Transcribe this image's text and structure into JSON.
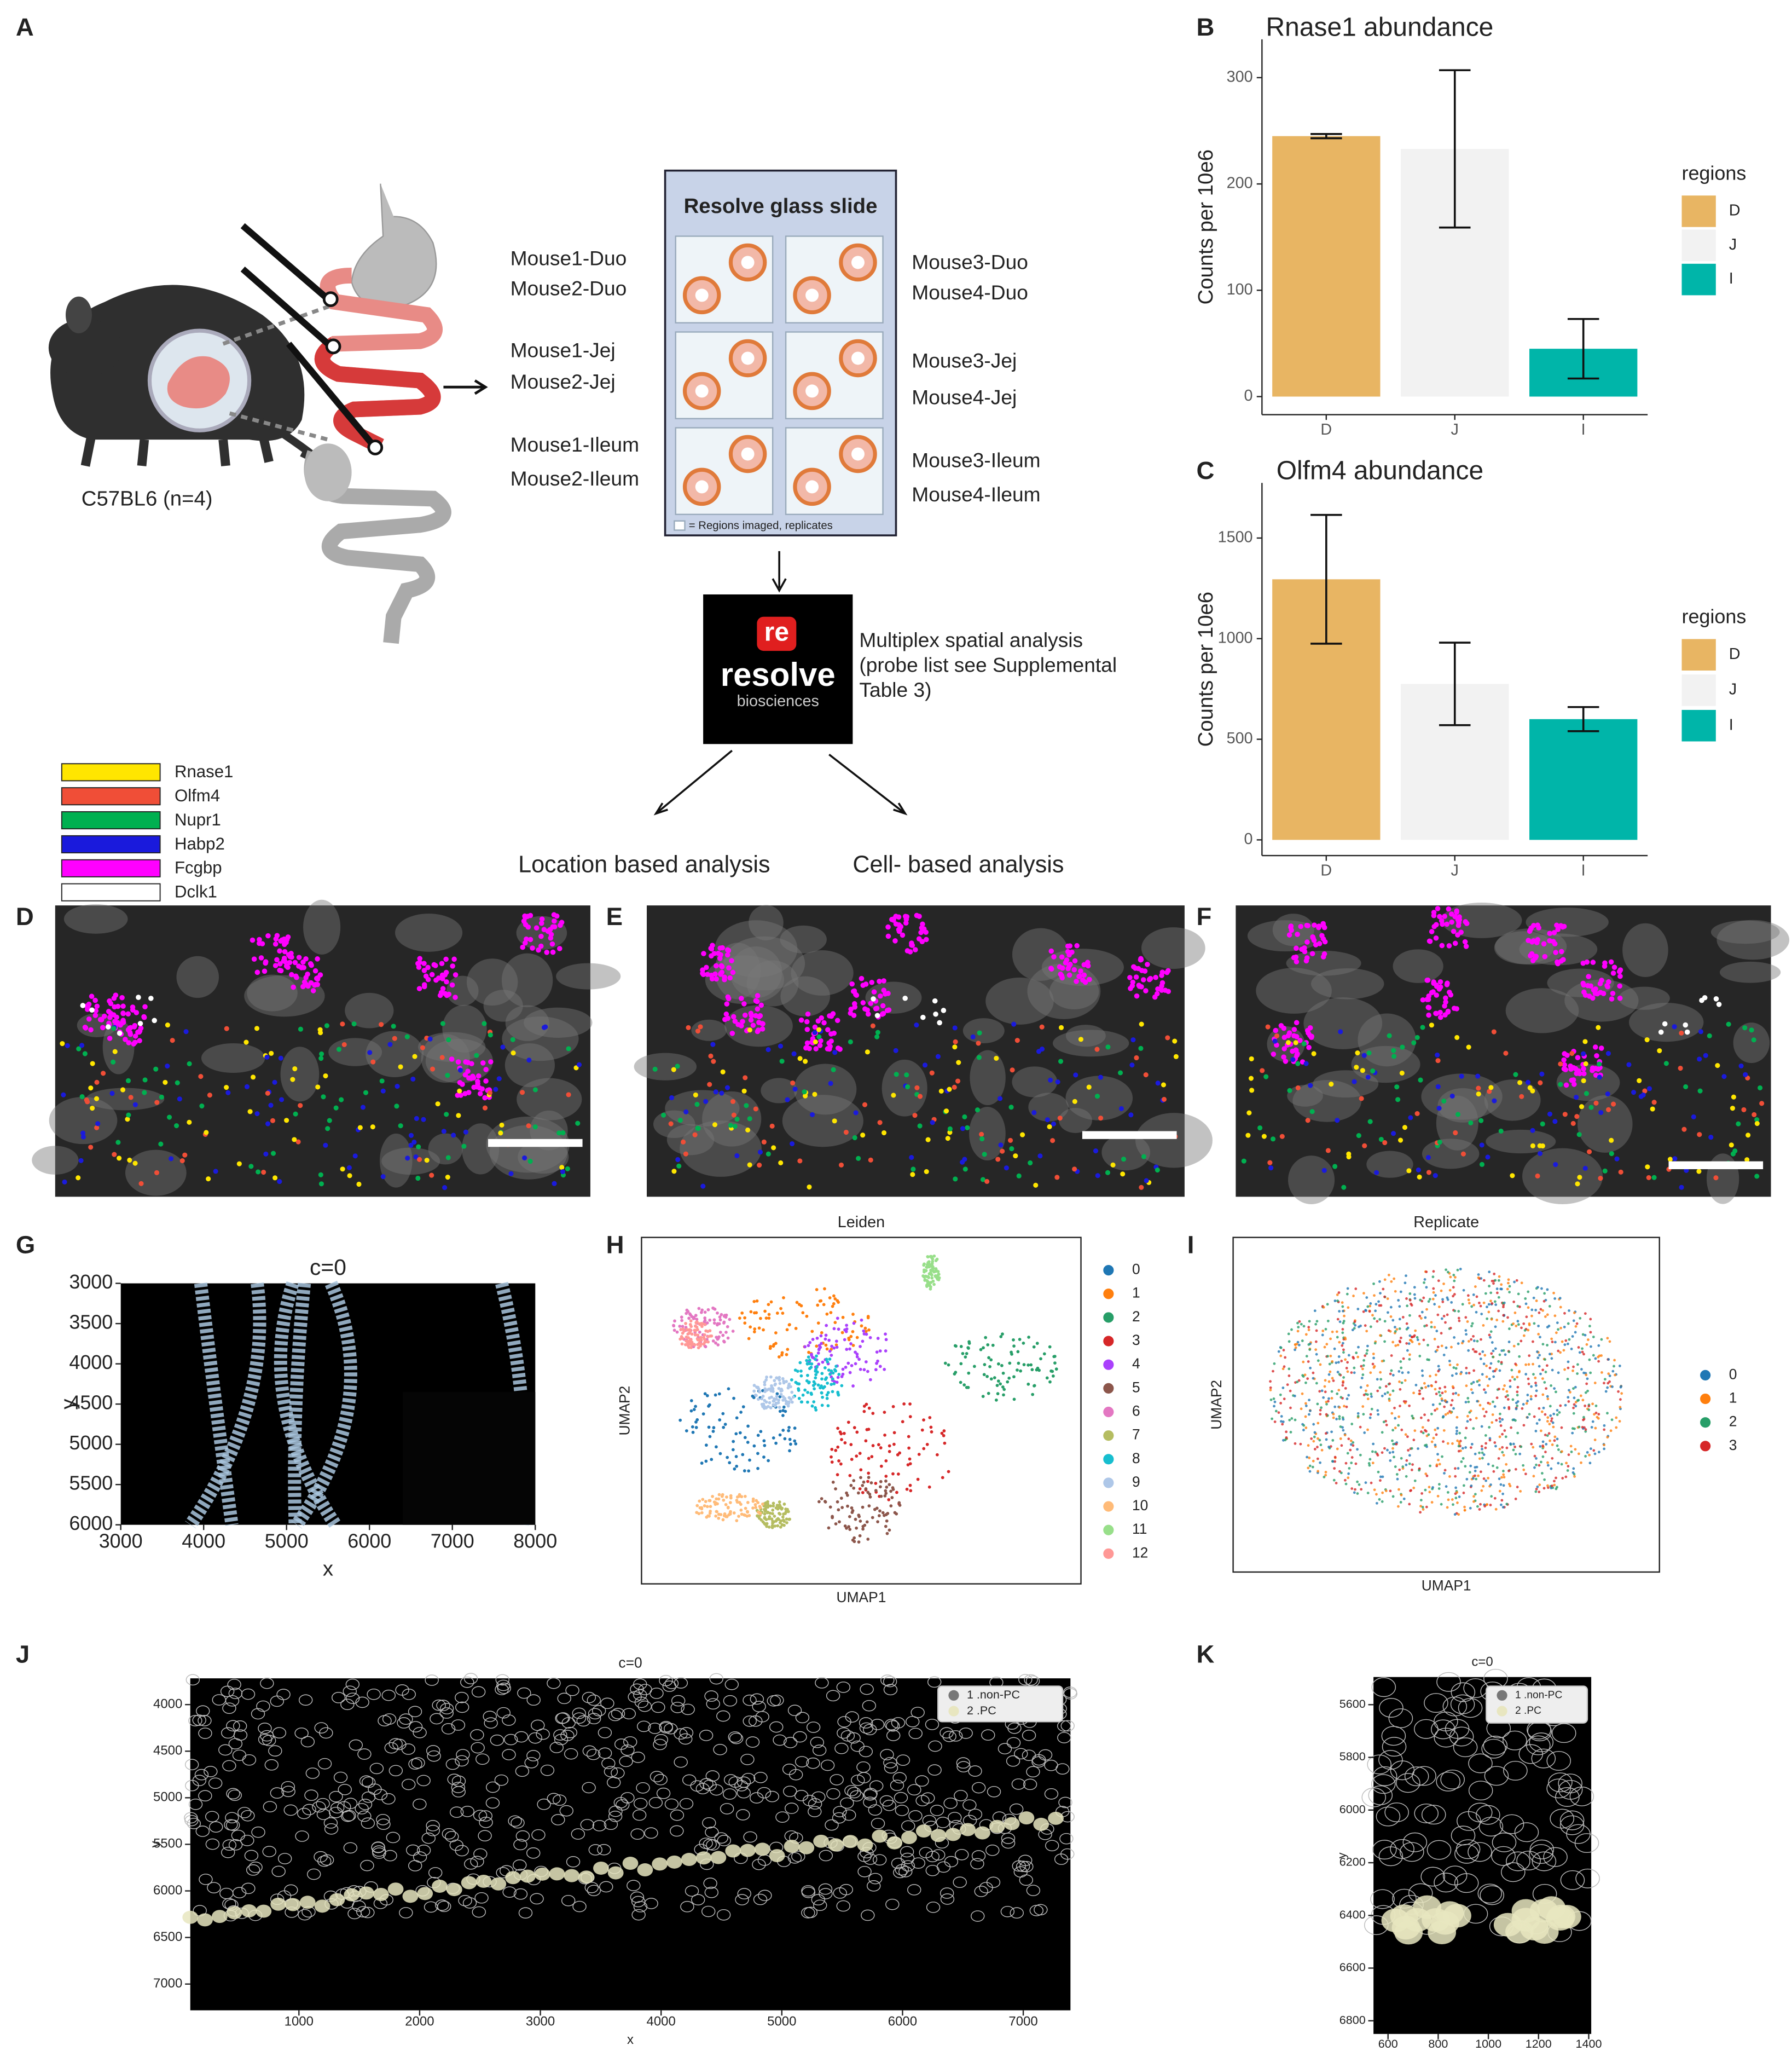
{
  "figure": {
    "panels": [
      "A",
      "B",
      "C",
      "D",
      "E",
      "F",
      "G",
      "H",
      "I",
      "J",
      "K"
    ]
  },
  "diagram": {
    "mouse_label": "C57BL6 (n=4)",
    "slide_title": "Resolve glass slide",
    "slide_note": "= Regions imaged, replicates",
    "left_samples": [
      "Mouse1-Duo",
      "Mouse2-Duo",
      "Mouse1-Jej",
      "Mouse2-Jej",
      "Mouse1-Ileum",
      "Mouse2-Ileum"
    ],
    "right_samples": [
      "Mouse3-Duo",
      "Mouse4-Duo",
      "Mouse3-Jej",
      "Mouse4-Jej",
      "Mouse3-Ileum",
      "Mouse4-Ileum"
    ],
    "logo_text": [
      "re",
      "resolve",
      "biosciences"
    ],
    "analysis_text": [
      "Multiplex spatial analysis",
      "(probe list see Supplemental",
      "Table 3)"
    ],
    "branches": [
      "Location based analysis",
      "Cell- based analysis"
    ]
  },
  "gene_legend": [
    {
      "name": "Rnase1",
      "color": "#ffe600"
    },
    {
      "name": "Olfm4",
      "color": "#f04e37"
    },
    {
      "name": "Nupr1",
      "color": "#00b050"
    },
    {
      "name": "Habp2",
      "color": "#1a1adc"
    },
    {
      "name": "Fcgbp",
      "color": "#ff00ff"
    },
    {
      "name": "Dclk1",
      "color": "#ffffff"
    }
  ],
  "chart_data": [
    {
      "type": "bar",
      "title": "Rnase1 abundance",
      "y_label": "Counts per 10e6",
      "categories": [
        "D",
        "J",
        "I"
      ],
      "values": [
        245,
        233,
        45
      ],
      "errors": [
        2,
        74,
        28
      ],
      "colors": [
        "#e8b563",
        "#f2f2f2",
        "#00b5a9"
      ],
      "legend_title": "regions",
      "ylim": [
        -17,
        336
      ],
      "yticks": [
        0,
        100,
        200,
        300
      ]
    },
    {
      "type": "bar",
      "title": "Olfm4 abundance",
      "y_label": "Counts per 10e6",
      "categories": [
        "D",
        "J",
        "I"
      ],
      "values": [
        1295,
        775,
        600
      ],
      "errors": [
        320,
        205,
        60
      ],
      "colors": [
        "#e8b563",
        "#f2f2f2",
        "#00b5a9"
      ],
      "legend_title": "regions",
      "ylim": [
        -78,
        1774
      ],
      "yticks": [
        0,
        500,
        1000,
        1500
      ]
    },
    {
      "type": "scatter",
      "title": "c=0",
      "x_label": "x",
      "y_label": "y",
      "xlim": [
        3000,
        8000
      ],
      "xticks": [
        3000,
        4000,
        5000,
        6000,
        7000,
        8000
      ],
      "ylim": [
        6000,
        3000
      ],
      "yticks": [
        3000,
        3500,
        4000,
        4500,
        5000,
        5500,
        6000
      ]
    },
    {
      "type": "scatter",
      "title": "Leiden",
      "x_label": "UMAP1",
      "y_label": "UMAP2",
      "series": [
        {
          "name": "0",
          "color": "#1f77b4"
        },
        {
          "name": "1",
          "color": "#ff7f0e"
        },
        {
          "name": "2",
          "color": "#279e68"
        },
        {
          "name": "3",
          "color": "#d62728"
        },
        {
          "name": "4",
          "color": "#aa40fc"
        },
        {
          "name": "5",
          "color": "#8c564b"
        },
        {
          "name": "6",
          "color": "#e377c2"
        },
        {
          "name": "7",
          "color": "#b5bd61"
        },
        {
          "name": "8",
          "color": "#17becf"
        },
        {
          "name": "9",
          "color": "#aec7e8"
        },
        {
          "name": "10",
          "color": "#ffbb78"
        },
        {
          "name": "11",
          "color": "#98df8a"
        },
        {
          "name": "12",
          "color": "#ff9896"
        }
      ]
    },
    {
      "type": "scatter",
      "title": "Replicate",
      "x_label": "UMAP1",
      "y_label": "UMAP2",
      "series": [
        {
          "name": "0",
          "color": "#1f77b4"
        },
        {
          "name": "1",
          "color": "#ff7f0e"
        },
        {
          "name": "2",
          "color": "#279e68"
        },
        {
          "name": "3",
          "color": "#d62728"
        }
      ]
    },
    {
      "type": "scatter",
      "title": "c=0",
      "x_label": "x",
      "y_label": "y",
      "xlim": [
        100,
        7391
      ],
      "xticks": [
        1000,
        2000,
        3000,
        4000,
        5000,
        6000,
        7000
      ],
      "ylim": [
        7282,
        3718
      ],
      "yticks": [
        4000,
        4500,
        5000,
        5500,
        6000,
        6500,
        7000
      ],
      "series": [
        {
          "name": "1 .non-PC",
          "color": "#777777"
        },
        {
          "name": "2 .PC",
          "color": "#e8e6c0"
        }
      ]
    },
    {
      "type": "scatter",
      "title": "c=0",
      "x_label": "x",
      "y_label": "y",
      "xlim": [
        542,
        1410
      ],
      "xticks": [
        600,
        800,
        1000,
        1200,
        1400
      ],
      "ylim": [
        6850,
        5495
      ],
      "yticks": [
        5600,
        5800,
        6000,
        6200,
        6400,
        6600,
        6800
      ],
      "series": [
        {
          "name": "1 .non-PC",
          "color": "#777777"
        },
        {
          "name": "2 .PC",
          "color": "#e8e6c0"
        }
      ]
    }
  ]
}
